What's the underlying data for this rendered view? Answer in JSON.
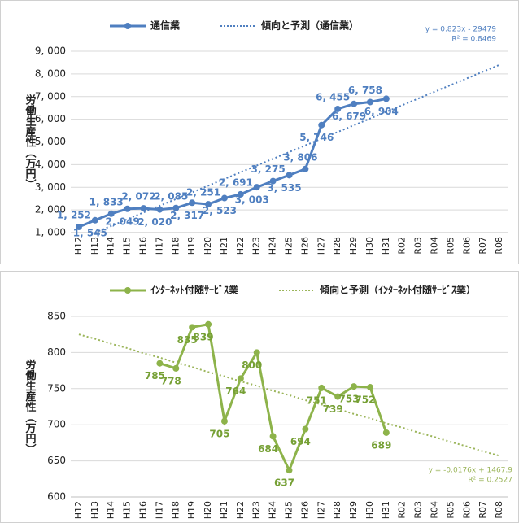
{
  "chart_data": [
    {
      "type": "line",
      "categories": [
        "H12",
        "H13",
        "H14",
        "H15",
        "H16",
        "H17",
        "H18",
        "H19",
        "H20",
        "H21",
        "H22",
        "H23",
        "H24",
        "H25",
        "H26",
        "H27",
        "H28",
        "H29",
        "H30",
        "H31",
        "R02",
        "R03",
        "R04",
        "R05",
        "R06",
        "R07",
        "R08"
      ],
      "y_label": "労働生産性（万円）",
      "ylim": [
        1000,
        9000
      ],
      "yticks": [
        {
          "value": 1000,
          "label": "1, 000"
        },
        {
          "value": 2000,
          "label": "2, 000"
        },
        {
          "value": 3000,
          "label": "3, 000"
        },
        {
          "value": 4000,
          "label": "4, 000"
        },
        {
          "value": 5000,
          "label": "5, 000"
        },
        {
          "value": 6000,
          "label": "6, 000"
        },
        {
          "value": 7000,
          "label": "7, 000"
        },
        {
          "value": 8000,
          "label": "8, 000"
        },
        {
          "value": 9000,
          "label": "9, 000"
        }
      ],
      "series": [
        {
          "name": "通信業",
          "color": "#4f7fc0",
          "values": [
            1252,
            1545,
            1833,
            2049,
            2072,
            2020,
            2085,
            2317,
            2251,
            2523,
            2691,
            3003,
            3275,
            3535,
            3806,
            5746,
            6455,
            6679,
            6758,
            6904,
            null,
            null,
            null,
            null,
            null,
            null,
            null
          ],
          "value_labels": [
            "1, 252",
            "1, 545",
            "1, 833",
            "2, 049",
            "2, 072",
            "2, 020",
            "2, 085",
            "2, 317",
            "2, 251",
            "2, 523",
            "2, 691",
            "3, 003",
            "3, 275",
            "3, 535",
            "3, 806",
            "5, 746",
            "6, 455",
            "6, 679",
            "6, 758",
            "6, 904",
            null,
            null,
            null,
            null,
            null,
            null,
            null
          ]
        },
        {
          "name": "傾向と予測（通信業）",
          "color": "#4f7fc0",
          "dotted": true,
          "values": [
            null,
            1000,
            1296,
            1592,
            1888,
            2184,
            2480,
            2776,
            3072,
            3368,
            3664,
            3960,
            4256,
            4552,
            4848,
            5144,
            5440,
            5736,
            6032,
            6328,
            6624,
            6920,
            7216,
            7512,
            7808,
            8104,
            8400
          ]
        }
      ],
      "annotations": [
        "y = 0.823x - 29479",
        "R² = 0.8469"
      ]
    },
    {
      "type": "line",
      "categories": [
        "H12",
        "H13",
        "H14",
        "H15",
        "H16",
        "H17",
        "H18",
        "H19",
        "H20",
        "H21",
        "H22",
        "H23",
        "H24",
        "H25",
        "H26",
        "H27",
        "H28",
        "H29",
        "H30",
        "H31",
        "R02",
        "R03",
        "R04",
        "R05",
        "R06",
        "R07",
        "R08"
      ],
      "y_label": "労働生産性（万円）",
      "ylim": [
        600,
        850
      ],
      "yticks": [
        600,
        650,
        700,
        750,
        800,
        850
      ],
      "series": [
        {
          "name": "ｲﾝﾀｰﾈｯﾄ付随ｻｰﾋﾞｽ業",
          "color": "#8db34a",
          "values": [
            null,
            null,
            null,
            null,
            null,
            785,
            778,
            835,
            839,
            705,
            764,
            800,
            684,
            637,
            694,
            751,
            739,
            753,
            752,
            689,
            null,
            null,
            null,
            null,
            null,
            null,
            null
          ]
        },
        {
          "name": "傾向と予測（ｲﾝﾀｰﾈｯﾄ付随ｻｰﾋﾞｽ業）",
          "color": "#9bb55a",
          "dotted": true,
          "values": [
            825,
            819,
            812,
            806,
            799,
            793,
            786,
            780,
            773,
            767,
            760,
            754,
            747,
            741,
            734,
            728,
            722,
            715,
            709,
            702,
            696,
            689,
            683,
            676,
            670,
            663,
            657
          ]
        }
      ],
      "annotations": [
        "y = -0.0176x + 1467.9",
        "R² = 0.2527"
      ]
    }
  ]
}
